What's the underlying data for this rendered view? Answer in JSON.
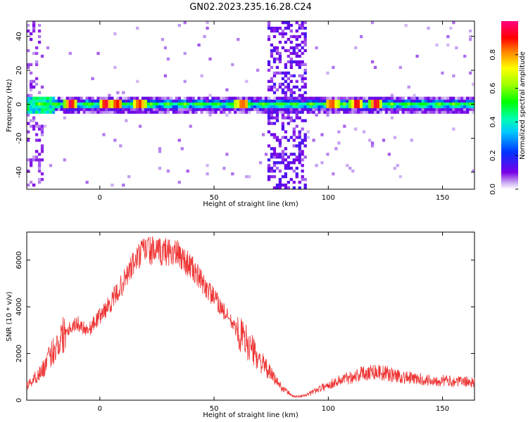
{
  "figure_title": "GN02.2023.235.16.28.C24",
  "colors": {
    "snr_line": "#ee3333",
    "axis": "#000000",
    "background": "#ffffff"
  },
  "chart_data": [
    {
      "type": "heatmap",
      "name": "spectrogram",
      "xlabel": "Height of straight line (km)",
      "ylabel": "Frequency (Hz)",
      "xlim": [
        -32,
        164
      ],
      "ylim": [
        -50,
        49
      ],
      "xticks": [
        0,
        50,
        100,
        150
      ],
      "yticks": [
        -40,
        -20,
        0,
        20,
        40
      ],
      "colorbar": {
        "label": "Normalized spectral amplitude",
        "range": [
          0,
          1
        ],
        "ticks": [
          0.0,
          0.2,
          0.4,
          0.6,
          0.8
        ],
        "colormap": "rainbow (violet→blue→cyan→green→yellow→red→magenta)"
      },
      "features": [
        {
          "kind": "band",
          "description": "strong continuous band centered near 0 Hz across full height range",
          "freq_center": 0,
          "freq_halfwidth": 3,
          "x_range": [
            -32,
            164
          ]
        },
        {
          "kind": "band",
          "description": "broadband vertical noise",
          "x_range": [
            73,
            90
          ],
          "freq_range": [
            -50,
            49
          ]
        },
        {
          "kind": "hotspots",
          "description": "red peak amplitude patches along 0 Hz",
          "x_centers": [
            -13,
            3,
            7,
            18,
            62,
            102,
            112,
            121
          ],
          "amplitude": 1.0
        }
      ]
    },
    {
      "type": "line",
      "name": "snr",
      "xlabel": "Height of straight line (km)",
      "ylabel": "SNR (10 * v/v)",
      "xlim": [
        -32,
        164
      ],
      "ylim": [
        0,
        7200
      ],
      "xticks": [
        0,
        50,
        100,
        150
      ],
      "yticks": [
        0,
        2000,
        4000,
        6000
      ],
      "series": [
        {
          "x": [
            -32,
            -25,
            -20,
            -15,
            -10,
            -5,
            0,
            5,
            10,
            15,
            20,
            25,
            30,
            35,
            40,
            45,
            50,
            55,
            60,
            65,
            70,
            75,
            80,
            85,
            90,
            95,
            100,
            105,
            110,
            115,
            120,
            125,
            130,
            135,
            140,
            145,
            150,
            155,
            160,
            164
          ],
          "values": [
            600,
            1300,
            2200,
            3000,
            3300,
            3000,
            3600,
            4200,
            5000,
            5900,
            6500,
            6300,
            6400,
            6200,
            5700,
            5000,
            4400,
            3700,
            3000,
            2400,
            1700,
            1100,
            500,
            150,
            200,
            450,
            650,
            850,
            1000,
            1150,
            1250,
            1150,
            1050,
            950,
            900,
            850,
            850,
            800,
            800,
            750
          ]
        }
      ]
    }
  ]
}
